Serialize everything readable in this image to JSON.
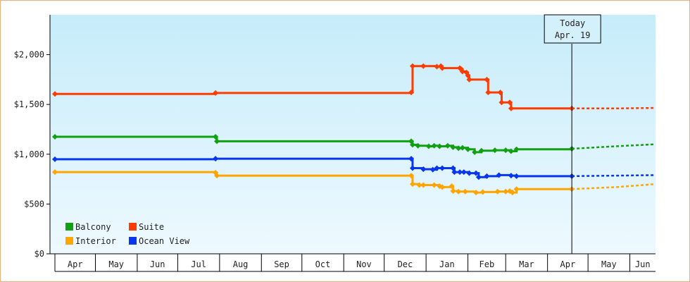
{
  "chart_data": {
    "type": "line",
    "title": "",
    "xlabel": "",
    "ylabel": "",
    "y_ticks": [
      "$0",
      "$500",
      "$1,000",
      "$1,500",
      "$2,000"
    ],
    "y_tick_values": [
      0,
      500,
      1000,
      1500,
      2000
    ],
    "ylim": [
      0,
      2400
    ],
    "x_range_days": [
      0,
      445
    ],
    "month_labels": [
      "Apr",
      "May",
      "Jun",
      "Jul",
      "Aug",
      "Sep",
      "Oct",
      "Nov",
      "Dec",
      "Jan",
      "Feb",
      "Mar",
      "Apr",
      "May",
      "Jun"
    ],
    "month_start_days": [
      0,
      30,
      61,
      91,
      122,
      153,
      183,
      214,
      244,
      275,
      306,
      334,
      365,
      395,
      426
    ],
    "today_label": [
      "Today",
      "Apr. 19"
    ],
    "today_day": 383,
    "legend_position": "bottom-left",
    "background_gradient": [
      "#c6ecfa",
      "#eef9ff"
    ],
    "series": [
      {
        "name": "Suite",
        "color": "#ff3c00",
        "points": [
          [
            0,
            1605
          ],
          [
            119,
            1615
          ],
          [
            264,
            1620
          ],
          [
            265,
            1885
          ],
          [
            273,
            1885
          ],
          [
            283,
            1880
          ],
          [
            286,
            1885
          ],
          [
            287,
            1865
          ],
          [
            300,
            1865
          ],
          [
            301,
            1855
          ],
          [
            302,
            1830
          ],
          [
            305,
            1820
          ],
          [
            306,
            1790
          ],
          [
            307,
            1750
          ],
          [
            320,
            1750
          ],
          [
            321,
            1620
          ],
          [
            330,
            1620
          ],
          [
            331,
            1520
          ],
          [
            337,
            1520
          ],
          [
            338,
            1460
          ],
          [
            383,
            1460
          ]
        ],
        "forecast": [
          [
            383,
            1460
          ],
          [
            416,
            1460
          ],
          [
            445,
            1465
          ]
        ]
      },
      {
        "name": "Balcony",
        "color": "#10a010",
        "points": [
          [
            0,
            1175
          ],
          [
            119,
            1175
          ],
          [
            120,
            1130
          ],
          [
            264,
            1130
          ],
          [
            265,
            1095
          ],
          [
            269,
            1085
          ],
          [
            277,
            1080
          ],
          [
            281,
            1085
          ],
          [
            285,
            1080
          ],
          [
            291,
            1085
          ],
          [
            295,
            1070
          ],
          [
            299,
            1060
          ],
          [
            302,
            1065
          ],
          [
            306,
            1050
          ],
          [
            311,
            1020
          ],
          [
            316,
            1035
          ],
          [
            326,
            1040
          ],
          [
            334,
            1040
          ],
          [
            338,
            1030
          ],
          [
            342,
            1050
          ],
          [
            383,
            1055
          ]
        ],
        "forecast": [
          [
            383,
            1055
          ],
          [
            416,
            1080
          ],
          [
            445,
            1100
          ]
        ]
      },
      {
        "name": "Ocean View",
        "color": "#0836f0",
        "points": [
          [
            0,
            950
          ],
          [
            119,
            955
          ],
          [
            264,
            955
          ],
          [
            265,
            860
          ],
          [
            273,
            850
          ],
          [
            280,
            845
          ],
          [
            283,
            860
          ],
          [
            287,
            860
          ],
          [
            295,
            860
          ],
          [
            296,
            820
          ],
          [
            300,
            820
          ],
          [
            303,
            820
          ],
          [
            307,
            810
          ],
          [
            312,
            810
          ],
          [
            314,
            770
          ],
          [
            320,
            780
          ],
          [
            329,
            790
          ],
          [
            338,
            785
          ],
          [
            342,
            780
          ],
          [
            383,
            780
          ]
        ],
        "forecast": [
          [
            383,
            780
          ],
          [
            416,
            785
          ],
          [
            445,
            790
          ]
        ]
      },
      {
        "name": "Interior",
        "color": "#ffa500",
        "points": [
          [
            0,
            820
          ],
          [
            119,
            815
          ],
          [
            120,
            785
          ],
          [
            264,
            785
          ],
          [
            265,
            700
          ],
          [
            270,
            690
          ],
          [
            273,
            690
          ],
          [
            281,
            690
          ],
          [
            285,
            680
          ],
          [
            287,
            670
          ],
          [
            294,
            680
          ],
          [
            295,
            630
          ],
          [
            299,
            625
          ],
          [
            304,
            625
          ],
          [
            312,
            615
          ],
          [
            317,
            620
          ],
          [
            328,
            625
          ],
          [
            334,
            625
          ],
          [
            337,
            630
          ],
          [
            339,
            615
          ],
          [
            342,
            650
          ],
          [
            383,
            650
          ]
        ],
        "forecast": [
          [
            383,
            650
          ],
          [
            416,
            670
          ],
          [
            445,
            700
          ]
        ]
      }
    ]
  }
}
